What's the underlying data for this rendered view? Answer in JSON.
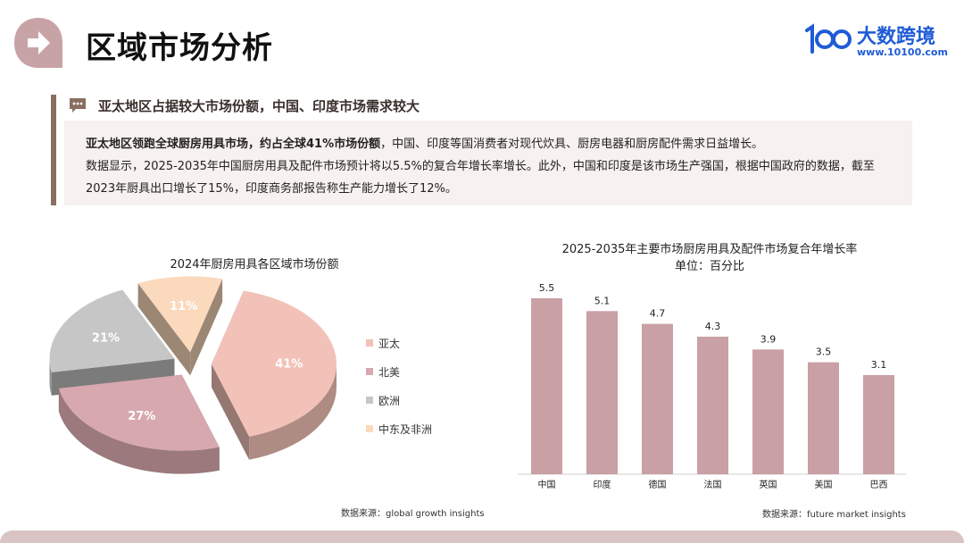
{
  "header": {
    "title": "区域市场分析"
  },
  "logo": {
    "name": "大数跨境",
    "url": "www.10100.com"
  },
  "summary": {
    "heading": "亚太地区占据较大市场份额，中国、印度市场需求较大",
    "bold_lead": "亚太地区领跑全球厨房用具市场，约占全球41%市场份额",
    "line1_rest": "，中国、印度等国消费者对现代炊具、厨房电器和厨房配件需求日益增长。",
    "line2": "数据显示，2025-2035年中国厨房用具及配件市场预计将以5.5%的复合年增长率增长。此外，中国和印度是该市场生产强国，根据中国政府的数据，截至2023年厨具出口增长了15%，印度商务部报告称生产能力增长了12%。"
  },
  "colors": {
    "apac": "#f2c2b8",
    "north_america": "#d7a8ae",
    "europe": "#c6c6c6",
    "mea": "#fbd9bd",
    "bar": "#c9a0a4",
    "accent": "#8b6e62",
    "logo": "#1f5bd6"
  },
  "chart_data": [
    {
      "type": "pie",
      "title": "2024年厨房用具各区域市场份额",
      "categories": [
        "亚太",
        "北美",
        "欧洲",
        "中东及非洲"
      ],
      "values": [
        41,
        27,
        21,
        11
      ],
      "value_labels": [
        "41%",
        "27%",
        "21%",
        "11%"
      ],
      "legend": "right",
      "exploded": true,
      "style": "3d",
      "source": "数据来源：global growth insights"
    },
    {
      "type": "bar",
      "title": "2025-2035年主要市场厨房用具及配件市场复合年增长率",
      "subtitle": "单位：百分比",
      "categories": [
        "中国",
        "印度",
        "德国",
        "法国",
        "英国",
        "美国",
        "巴西"
      ],
      "values": [
        5.5,
        5.1,
        4.7,
        4.3,
        3.9,
        3.5,
        3.1
      ],
      "value_labels": [
        "5.5",
        "5.1",
        "4.7",
        "4.3",
        "3.9",
        "3.5",
        "3.1"
      ],
      "ylim": [
        0,
        5.5
      ],
      "grid": false,
      "source": "数据来源：future market insights"
    }
  ]
}
